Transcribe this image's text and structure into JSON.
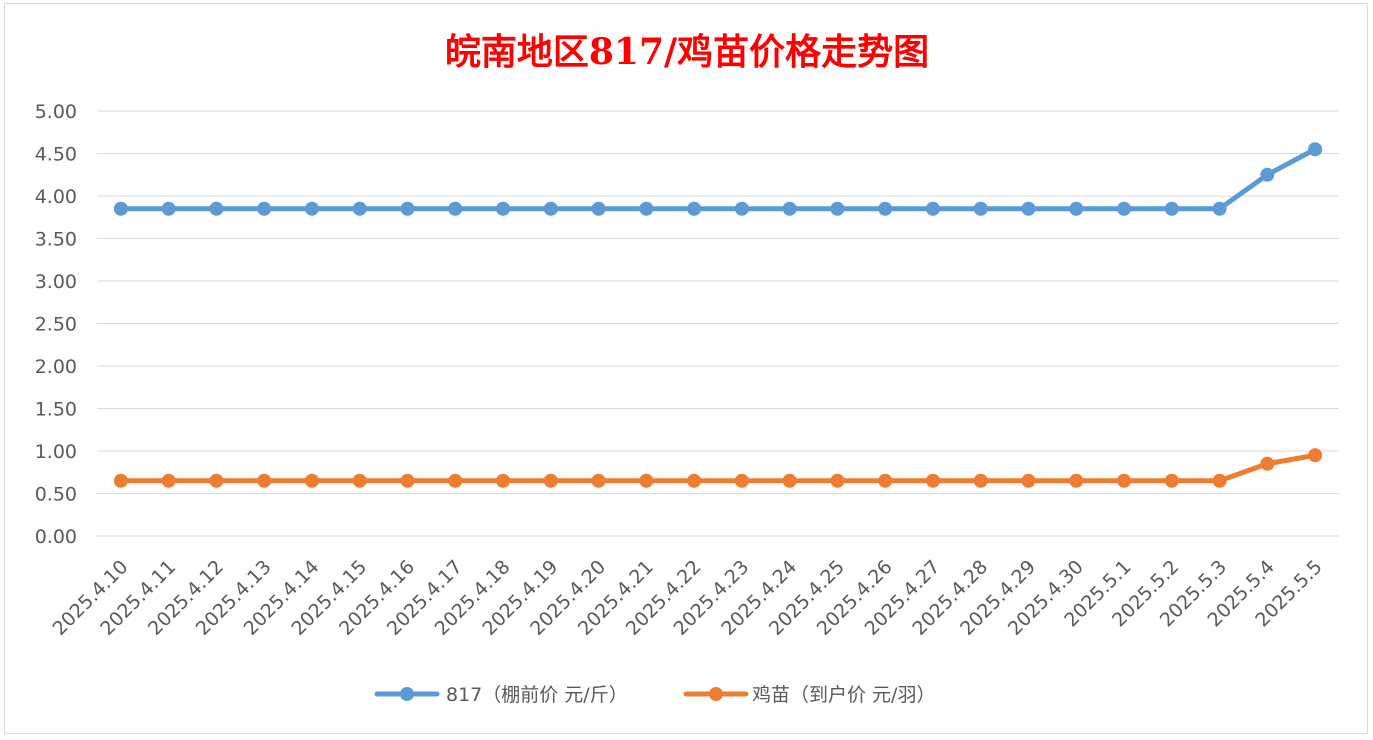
{
  "colors": {
    "series_817": "#5b9bd5",
    "series_chick": "#ed7d31",
    "title": "#ff0000",
    "grid": "#d9d9d9",
    "tick_text": "#595959"
  },
  "chart_data": {
    "type": "line",
    "title": "皖南地区817/鸡苗价格走势图",
    "xlabel": "",
    "ylabel": "",
    "ylim": [
      0,
      5
    ],
    "yticks": [
      "0.00",
      "0.50",
      "1.00",
      "1.50",
      "2.00",
      "2.50",
      "3.00",
      "3.50",
      "4.00",
      "4.50",
      "5.00"
    ],
    "grid": true,
    "legend_position": "bottom",
    "categories": [
      "2025.4.10",
      "2025.4.11",
      "2025.4.12",
      "2025.4.13",
      "2025.4.14",
      "2025.4.15",
      "2025.4.16",
      "2025.4.17",
      "2025.4.18",
      "2025.4.19",
      "2025.4.20",
      "2025.4.21",
      "2025.4.22",
      "2025.4.23",
      "2025.4.24",
      "2025.4.25",
      "2025.4.26",
      "2025.4.27",
      "2025.4.28",
      "2025.4.29",
      "2025.4.30",
      "2025.5.1",
      "2025.5.2",
      "2025.5.3",
      "2025.5.4",
      "2025.5.5"
    ],
    "series": [
      {
        "name": "817（棚前价 元/斤）",
        "color": "#5b9bd5",
        "values": [
          3.85,
          3.85,
          3.85,
          3.85,
          3.85,
          3.85,
          3.85,
          3.85,
          3.85,
          3.85,
          3.85,
          3.85,
          3.85,
          3.85,
          3.85,
          3.85,
          3.85,
          3.85,
          3.85,
          3.85,
          3.85,
          3.85,
          3.85,
          3.85,
          4.25,
          4.55
        ]
      },
      {
        "name": "鸡苗（到户价 元/羽）",
        "color": "#ed7d31",
        "values": [
          0.65,
          0.65,
          0.65,
          0.65,
          0.65,
          0.65,
          0.65,
          0.65,
          0.65,
          0.65,
          0.65,
          0.65,
          0.65,
          0.65,
          0.65,
          0.65,
          0.65,
          0.65,
          0.65,
          0.65,
          0.65,
          0.65,
          0.65,
          0.65,
          0.85,
          0.95
        ]
      }
    ]
  }
}
